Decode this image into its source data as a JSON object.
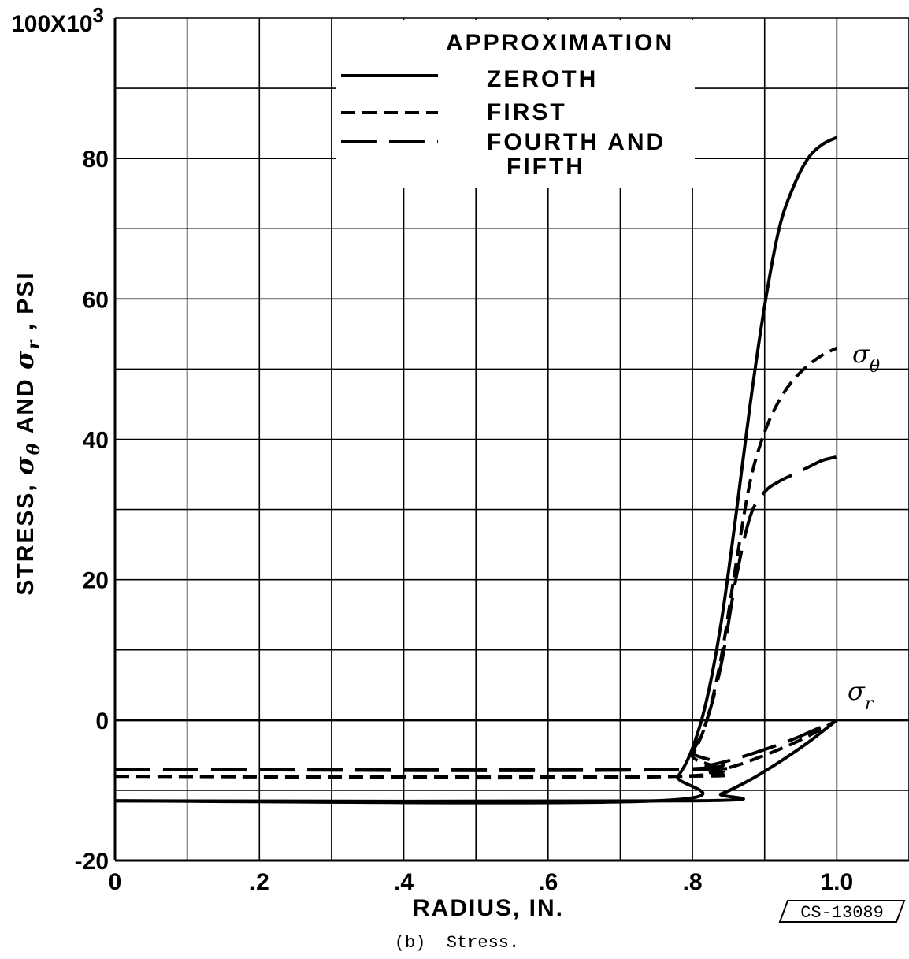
{
  "chart_data": {
    "type": "line",
    "xlabel": "RADIUS, IN.",
    "ylabel_parts": {
      "prefix": "STRESS, ",
      "sym1": "σ",
      "sub1": "θ",
      "middle": " AND ",
      "sym2": "σ",
      "sub2": "r",
      "suffix": " , PSI"
    },
    "xlim": [
      0,
      1.1
    ],
    "ylim": [
      -20000,
      100000
    ],
    "x_ticks": [
      {
        "value": 0,
        "label": "0"
      },
      {
        "value": 0.2,
        "label": ".2"
      },
      {
        "value": 0.4,
        "label": ".4"
      },
      {
        "value": 0.6,
        "label": ".6"
      },
      {
        "value": 0.8,
        "label": ".8"
      },
      {
        "value": 1.0,
        "label": "1.0"
      }
    ],
    "y_ticks": [
      {
        "value": -20000,
        "label": "-20"
      },
      {
        "value": 0,
        "label": "0"
      },
      {
        "value": 20000,
        "label": "20"
      },
      {
        "value": 40000,
        "label": "40"
      },
      {
        "value": 60000,
        "label": "60"
      },
      {
        "value": 80000,
        "label": "80"
      },
      {
        "value": 100000,
        "label": "100X10",
        "sup": "3"
      }
    ],
    "grid": true,
    "grid_x_step": 0.1,
    "grid_y_step": 10000,
    "legend": {
      "title": "APPROXIMATION",
      "position": "top-center",
      "entries": [
        {
          "label": "ZEROTH",
          "style": "solid"
        },
        {
          "label": "FIRST",
          "style": "short-dash"
        },
        {
          "label": "FOURTH AND",
          "label2": "FIFTH",
          "style": "long-dash"
        }
      ]
    },
    "curve_labels": {
      "sigma_theta": {
        "sym": "σ",
        "sub": "θ"
      },
      "sigma_r": {
        "sym": "σ",
        "sub": "r"
      }
    },
    "series": [
      {
        "legend": "ZEROTH",
        "quantity": "sigma_theta",
        "style": "solid",
        "x": [
          0,
          0.75,
          0.78,
          0.8,
          0.82,
          0.84,
          0.86,
          0.88,
          0.9,
          0.92,
          0.94,
          0.96,
          0.98,
          1.0
        ],
        "y": [
          -11500,
          -11500,
          -8000,
          -4000,
          3000,
          14000,
          29000,
          45000,
          59000,
          70000,
          76000,
          80000,
          82000,
          83000
        ]
      },
      {
        "legend": "FIRST",
        "quantity": "sigma_theta",
        "style": "short-dash",
        "x": [
          0,
          0.78,
          0.8,
          0.82,
          0.84,
          0.86,
          0.88,
          0.9,
          0.92,
          0.94,
          0.96,
          0.98,
          1.0
        ],
        "y": [
          -8000,
          -8000,
          -5000,
          0,
          9000,
          22000,
          34000,
          41000,
          45500,
          48500,
          50500,
          52000,
          53000
        ]
      },
      {
        "legend": "FOURTH AND FIFTH",
        "quantity": "sigma_theta",
        "style": "long-dash",
        "x": [
          0,
          0.78,
          0.8,
          0.82,
          0.84,
          0.86,
          0.88,
          0.9,
          0.92,
          0.94,
          0.96,
          0.98,
          1.0
        ],
        "y": [
          -7000,
          -7000,
          -4500,
          0,
          8000,
          20000,
          29000,
          32500,
          34000,
          35000,
          36000,
          37000,
          37500
        ]
      },
      {
        "legend": "ZEROTH",
        "quantity": "sigma_r",
        "style": "solid",
        "x": [
          0,
          0.8,
          0.84,
          0.88,
          0.92,
          0.96,
          1.0
        ],
        "y": [
          -11500,
          -11500,
          -10500,
          -8500,
          -6000,
          -3200,
          0
        ]
      },
      {
        "legend": "FIRST",
        "quantity": "sigma_r",
        "style": "short-dash",
        "x": [
          0,
          0.78,
          0.82,
          0.86,
          0.9,
          0.94,
          0.98,
          1.0
        ],
        "y": [
          -8000,
          -8000,
          -7500,
          -6500,
          -5000,
          -3300,
          -1200,
          0
        ]
      },
      {
        "legend": "FOURTH AND FIFTH",
        "quantity": "sigma_r",
        "style": "long-dash",
        "x": [
          0,
          0.78,
          0.82,
          0.86,
          0.9,
          0.94,
          0.98,
          1.0
        ],
        "y": [
          -7000,
          -7000,
          -6500,
          -5500,
          -4200,
          -2700,
          -900,
          0
        ]
      }
    ]
  },
  "figure_id": "CS-13089",
  "caption": "(b)  Stress."
}
